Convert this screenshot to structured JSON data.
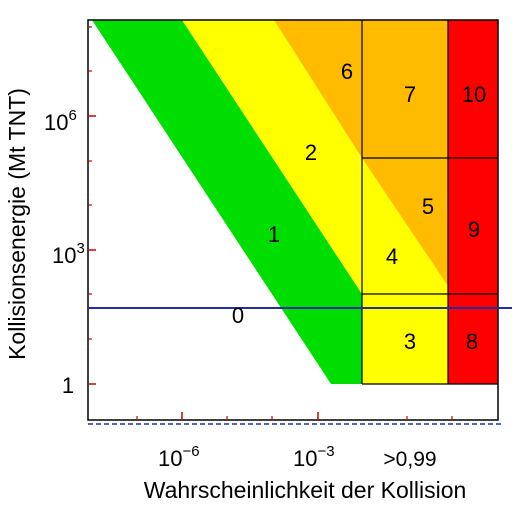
{
  "chart_data": {
    "type": "area",
    "title": "",
    "xlabel": "Wahrscheinlichkeit der Kollision",
    "ylabel": "Kollisionsenergie (Mt TNT)",
    "x_ticks": [
      {
        "base": "10",
        "exp": "−6"
      },
      {
        "base": "10",
        "exp": "−3"
      },
      {
        "base": ">0,99",
        "exp": ""
      }
    ],
    "y_ticks": [
      {
        "base": "1",
        "exp": ""
      },
      {
        "base": "10",
        "exp": "3"
      },
      {
        "base": "10",
        "exp": "6"
      }
    ],
    "x_axis": {
      "scale": "log",
      "xlim_log10": [
        -8,
        1.5
      ]
    },
    "y_axis": {
      "scale": "log",
      "ylim_log10": [
        -1,
        8
      ]
    },
    "categories": [
      "0",
      "1",
      "2",
      "3",
      "4",
      "5",
      "6",
      "7",
      "8",
      "9",
      "10"
    ],
    "colors": {
      "0": "#ffffff",
      "1": "#00dd00",
      "2": "#ffff00",
      "3": "#ffff00",
      "4": "#ffff00",
      "5": "#ffbb00",
      "6": "#ffbb00",
      "7": "#ffbb00",
      "8": "#ff0000",
      "9": "#ff0000",
      "10": "#ff0000"
    },
    "grid": false,
    "reference_lines": [
      {
        "style": "solid",
        "color": "#1f2fa8"
      },
      {
        "style": "dashed",
        "color": "#1f2fa8"
      }
    ]
  }
}
